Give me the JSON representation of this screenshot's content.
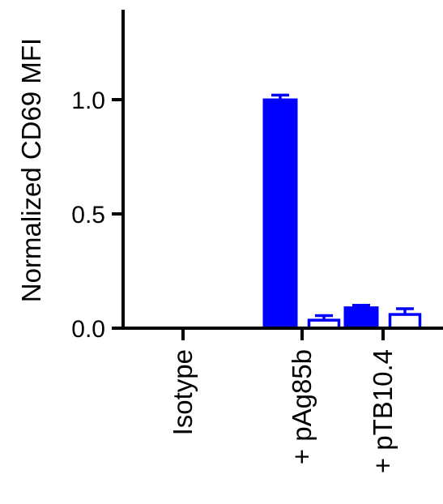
{
  "chart_data": {
    "type": "bar",
    "title": "",
    "xlabel": "",
    "ylabel": "Normalized CD69 MFI",
    "ylim": [
      0,
      1.4
    ],
    "yticks": [
      0.0,
      0.5,
      1.0
    ],
    "ytick_labels": [
      "0.0",
      "0.5",
      "1.0"
    ],
    "categories": [
      "Isotype",
      "+ pAg85b",
      "+ pTB10.4"
    ],
    "colors": {
      "accent": "#0000ff",
      "axis": "#000000"
    },
    "series": [
      {
        "style": "filled",
        "values": [
          0.0,
          1.0,
          0.09
        ],
        "errors": [
          0.0,
          0.02,
          0.01
        ]
      },
      {
        "style": "open",
        "values": [
          0.0,
          0.035,
          0.06
        ],
        "errors": [
          0.0,
          0.02,
          0.025
        ]
      }
    ],
    "grid": false,
    "legend": "none"
  }
}
